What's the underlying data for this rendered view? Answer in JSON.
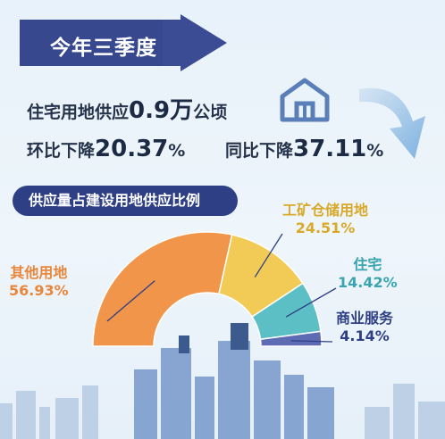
{
  "banner": {
    "title": "今年三季度"
  },
  "stats": {
    "line1": {
      "prefix": "住宅用地供应",
      "value": "0.9万",
      "unit": "公顷"
    },
    "line2": {
      "prefix": "环比下降",
      "value": "20.37",
      "unit": "%"
    },
    "line3": {
      "prefix": "同比下降",
      "value": "37.11",
      "unit": "%"
    }
  },
  "section": {
    "title": "供应量占建设用地供应比例"
  },
  "icons": {
    "house": "house-icon",
    "arrow": "curved-arrow-icon"
  },
  "chart_data": {
    "type": "pie",
    "subtype": "half-donut",
    "categories": [
      "其他用地",
      "工矿仓储用地",
      "住宅",
      "商业服务"
    ],
    "values": [
      56.93,
      24.51,
      14.42,
      4.14
    ],
    "labels": [
      "56.93%",
      "24.51%",
      "14.42%",
      "4.14%"
    ],
    "colors": [
      "#f0954a",
      "#f1cb56",
      "#5cbfc6",
      "#5d6bb3"
    ],
    "label_colors": [
      "#e8873b",
      "#d9a92a",
      "#3aa4b0",
      "#2e3f86"
    ]
  }
}
